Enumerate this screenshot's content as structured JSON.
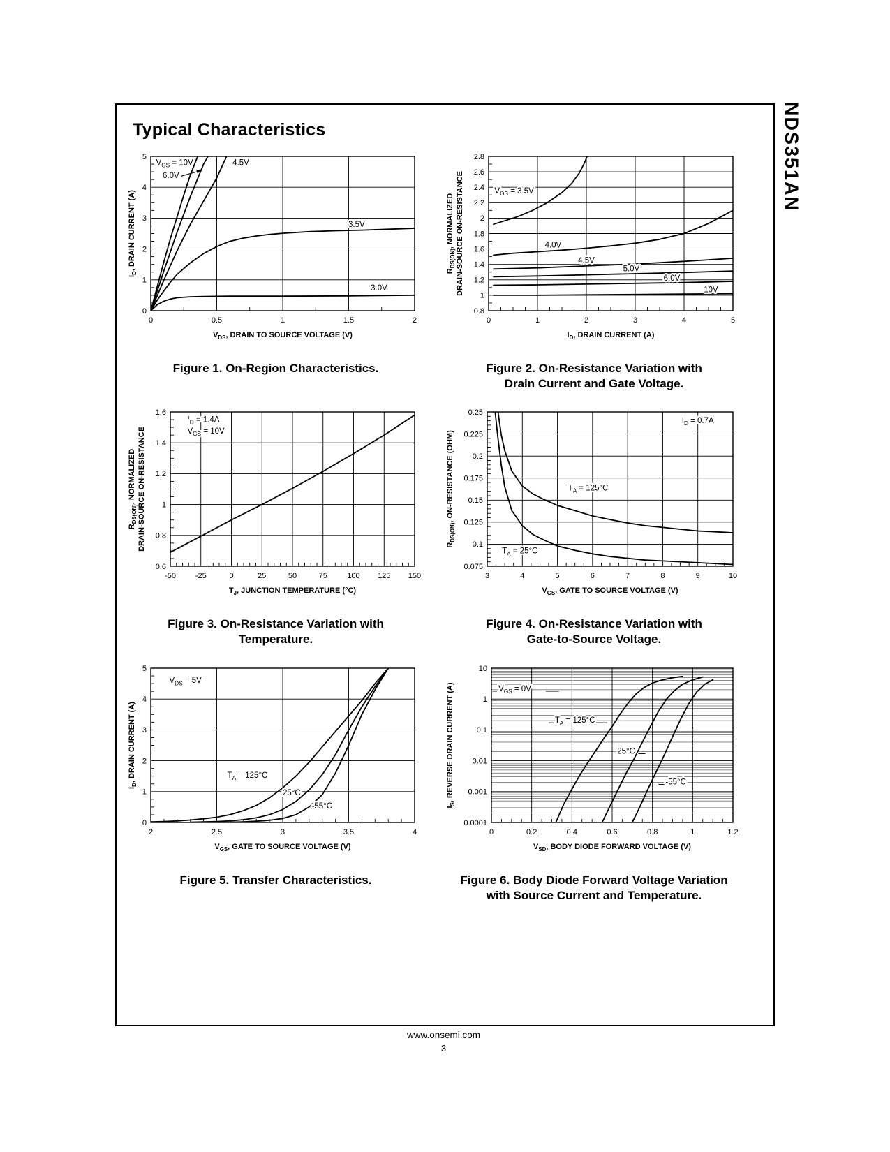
{
  "page": {
    "title": "Typical Characteristics",
    "side_label": "NDS351AN",
    "footer": {
      "url": "www.onsemi.com",
      "page_number": "3"
    }
  },
  "chart_data": [
    {
      "caption": "Figure 1. On-Region Characteristics.",
      "type": "line",
      "xlabel": "V_{DS}, DRAIN TO SOURCE VOLTAGE (V)",
      "ylabel": "I_{D}, DRAIN CURRENT (A)",
      "xlim": [
        0,
        2
      ],
      "ylim": [
        0,
        5
      ],
      "xticks": [
        0,
        0.5,
        1,
        1.5,
        2
      ],
      "xtick_labels": [
        "0",
        "0.5",
        "1",
        "1.5",
        "2"
      ],
      "yticks": [
        0,
        1,
        2,
        3,
        4,
        5
      ],
      "ytick_labels": [
        "0",
        "1",
        "2",
        "3",
        "4",
        "5"
      ],
      "xminor_step": 0.25,
      "yminor_step": 0.25,
      "yscale": "linear",
      "grid": true,
      "legend": "inline-annotations",
      "series": [
        {
          "name": "VGS = 10V",
          "x": [
            0,
            0.05,
            0.1,
            0.15,
            0.2,
            0.25,
            0.3,
            0.36
          ],
          "y": [
            0,
            0.8,
            1.6,
            2.35,
            3.05,
            3.75,
            4.4,
            5.05
          ]
        },
        {
          "name": "VGS = 6.0V",
          "x": [
            0,
            0.05,
            0.1,
            0.2,
            0.3,
            0.4,
            0.44
          ],
          "y": [
            0,
            0.65,
            1.3,
            2.55,
            3.7,
            4.75,
            5.05
          ]
        },
        {
          "name": "VGS = 4.5V",
          "x": [
            0,
            0.05,
            0.1,
            0.2,
            0.3,
            0.4,
            0.5,
            0.58
          ],
          "y": [
            0,
            0.5,
            1.0,
            1.95,
            2.8,
            3.55,
            4.3,
            5.05
          ]
        },
        {
          "name": "VGS = 3.5V",
          "x": [
            0,
            0.05,
            0.1,
            0.15,
            0.2,
            0.3,
            0.4,
            0.5,
            0.6,
            0.7,
            0.8,
            0.9,
            1.0,
            1.2,
            1.4,
            1.6,
            1.8,
            2.0
          ],
          "y": [
            0,
            0.35,
            0.65,
            0.93,
            1.18,
            1.55,
            1.85,
            2.08,
            2.25,
            2.35,
            2.42,
            2.47,
            2.51,
            2.56,
            2.59,
            2.61,
            2.64,
            2.67
          ]
        },
        {
          "name": "VGS = 3.0V",
          "x": [
            0,
            0.05,
            0.1,
            0.15,
            0.2,
            0.3,
            0.4,
            0.6,
            1.0,
            1.5,
            2.0
          ],
          "y": [
            0,
            0.2,
            0.31,
            0.38,
            0.42,
            0.45,
            0.46,
            0.47,
            0.47,
            0.48,
            0.5
          ]
        }
      ],
      "annotations": [
        {
          "text": "V_{GS} = 10V",
          "x": 0.04,
          "y": 4.72,
          "ha": "start"
        },
        {
          "text": "6.0V",
          "x": 0.09,
          "y": 4.3,
          "ha": "start",
          "leader": [
            0.23,
            4.36,
            0.38,
            4.54
          ],
          "arrow": true
        },
        {
          "text": "4.5V",
          "x": 0.62,
          "y": 4.72,
          "ha": "start"
        },
        {
          "text": "3.5V",
          "x": 1.56,
          "y": 2.72,
          "ha": "middle"
        },
        {
          "text": "3.0V",
          "x": 1.73,
          "y": 0.66,
          "ha": "middle"
        }
      ]
    },
    {
      "caption": "Figure 2. On-Resistance Variation with\nDrain Current and Gate Voltage.",
      "type": "line",
      "xlabel": "I_{D}, DRAIN CURRENT (A)",
      "ylabel": "R_{DS(ON)}, NORMALIZED\nDRAIN-SOURCE ON-RESISTANCE",
      "xlim": [
        0,
        5
      ],
      "ylim": [
        0.8,
        2.8
      ],
      "xticks": [
        0,
        1,
        2,
        3,
        4,
        5
      ],
      "xtick_labels": [
        "0",
        "1",
        "2",
        "3",
        "4",
        "5"
      ],
      "yticks": [
        0.8,
        1,
        1.2,
        1.4,
        1.6,
        1.8,
        2,
        2.2,
        2.4,
        2.6,
        2.8
      ],
      "ytick_labels": [
        "0.8",
        "1",
        "1.2",
        "1.4",
        "1.6",
        "1.8",
        "2",
        "2.2",
        "2.4",
        "2.6",
        "2.8"
      ],
      "xminor_step": 0.25,
      "yminor_step": 0.1,
      "yscale": "linear",
      "grid": true,
      "legend": "inline-annotations",
      "series": [
        {
          "name": "VGS = 3.5V",
          "x": [
            0.1,
            0.3,
            0.6,
            0.9,
            1.2,
            1.5,
            1.7,
            1.85,
            1.95,
            2.03
          ],
          "y": [
            1.92,
            1.96,
            2.02,
            2.1,
            2.2,
            2.33,
            2.45,
            2.58,
            2.7,
            2.82
          ]
        },
        {
          "name": "VGS = 4.0V",
          "x": [
            0.1,
            0.5,
            1.0,
            1.5,
            2.0,
            2.5,
            3.0,
            3.5,
            4.0,
            4.5,
            5.0
          ],
          "y": [
            1.52,
            1.545,
            1.565,
            1.585,
            1.61,
            1.64,
            1.675,
            1.725,
            1.8,
            1.93,
            2.1
          ]
        },
        {
          "name": "VGS = 4.5V",
          "x": [
            0.1,
            1,
            2,
            3,
            4,
            5
          ],
          "y": [
            1.34,
            1.355,
            1.38,
            1.405,
            1.44,
            1.48
          ]
        },
        {
          "name": "VGS = 5.0V",
          "x": [
            0.1,
            1,
            2,
            3,
            4,
            5
          ],
          "y": [
            1.24,
            1.25,
            1.265,
            1.28,
            1.295,
            1.315
          ]
        },
        {
          "name": "VGS = 6.0V",
          "x": [
            0.1,
            1,
            2,
            3,
            4,
            5
          ],
          "y": [
            1.13,
            1.135,
            1.145,
            1.155,
            1.165,
            1.18
          ]
        },
        {
          "name": "VGS = 10V",
          "x": [
            0.1,
            1,
            2,
            3,
            4,
            5
          ],
          "y": [
            1.0,
            1.0,
            1.005,
            1.01,
            1.015,
            1.02
          ]
        }
      ],
      "annotations": [
        {
          "text": "V_{GS} = 3.5V",
          "x": 0.12,
          "y": 2.32,
          "ha": "start"
        },
        {
          "text": "4.0V",
          "x": 1.32,
          "y": 1.62,
          "ha": "middle"
        },
        {
          "text": "4.5V",
          "x": 2.0,
          "y": 1.42,
          "ha": "middle"
        },
        {
          "text": "5.0V",
          "x": 2.92,
          "y": 1.31,
          "ha": "middle"
        },
        {
          "text": "6.0V",
          "x": 3.75,
          "y": 1.19,
          "ha": "middle"
        },
        {
          "text": "10V",
          "x": 4.55,
          "y": 1.04,
          "ha": "middle"
        }
      ]
    },
    {
      "caption": "Figure 3. On-Resistance Variation with\nTemperature.",
      "type": "line",
      "xlabel": "T_{J}, JUNCTION TEMPERATURE (°C)",
      "ylabel": "R_{DS(ON)}, NORMALIZED\nDRAIN-SOURCE ON-RESISTANCE",
      "xlim": [
        -50,
        150
      ],
      "ylim": [
        0.6,
        1.6
      ],
      "xticks": [
        -50,
        -25,
        0,
        25,
        50,
        75,
        100,
        125,
        150
      ],
      "xtick_labels": [
        "-50",
        "-25",
        "0",
        "25",
        "50",
        "75",
        "100",
        "125",
        "150"
      ],
      "yticks": [
        0.6,
        0.8,
        1,
        1.2,
        1.4,
        1.6
      ],
      "ytick_labels": [
        "0.6",
        "0.8",
        "1",
        "1.2",
        "1.4",
        "1.6"
      ],
      "xminor_step": 5,
      "yminor_step": 0.05,
      "yscale": "linear",
      "grid": true,
      "legend": "none",
      "series": [
        {
          "name": "normalized RDS(ON)",
          "x": [
            -50,
            -25,
            0,
            25,
            50,
            75,
            100,
            125,
            150
          ],
          "y": [
            0.69,
            0.795,
            0.9,
            1.0,
            1.105,
            1.215,
            1.33,
            1.45,
            1.58
          ]
        }
      ],
      "annotations": [
        {
          "text": "I_{D} = 1.4A",
          "x": -36,
          "y": 1.535,
          "ha": "start"
        },
        {
          "text": "V_{GS} = 10V",
          "x": -36,
          "y": 1.46,
          "ha": "start"
        }
      ]
    },
    {
      "caption": "Figure 4. On-Resistance Variation with\nGate-to-Source Voltage.",
      "type": "line",
      "xlabel": "V_{GS}, GATE TO SOURCE VOLTAGE (V)",
      "ylabel": "R_{DS(ON)},  ON-RESISTANCE (OHM)",
      "xlim": [
        3,
        10
      ],
      "ylim": [
        0.075,
        0.25
      ],
      "xticks": [
        3,
        4,
        5,
        6,
        7,
        8,
        9,
        10
      ],
      "xtick_labels": [
        "3",
        "4",
        "5",
        "6",
        "7",
        "8",
        "9",
        "10"
      ],
      "yticks": [
        0.075,
        0.1,
        0.125,
        0.15,
        0.175,
        0.2,
        0.225,
        0.25
      ],
      "ytick_labels": [
        "0.075",
        "0.1",
        "0.125",
        "0.15",
        "0.175",
        "0.2",
        "0.225",
        "0.25"
      ],
      "xminor_step": 0.25,
      "yminor_step": 0.005,
      "yscale": "linear",
      "grid": true,
      "legend": "inline-annotations",
      "series": [
        {
          "name": "TA = 125°C",
          "x": [
            3.3,
            3.4,
            3.5,
            3.7,
            4.0,
            4.3,
            4.6,
            5.0,
            5.5,
            6.0,
            6.5,
            7.0,
            7.5,
            8.0,
            8.5,
            9.0,
            9.5,
            10.0
          ],
          "y": [
            0.252,
            0.224,
            0.206,
            0.183,
            0.166,
            0.157,
            0.151,
            0.144,
            0.138,
            0.132,
            0.128,
            0.124,
            0.121,
            0.119,
            0.117,
            0.115,
            0.114,
            0.113
          ]
        },
        {
          "name": "TA = 25°C",
          "x": [
            3.22,
            3.3,
            3.4,
            3.5,
            3.7,
            4.0,
            4.3,
            4.6,
            5.0,
            5.5,
            6.0,
            6.5,
            7.0,
            7.5,
            8.0,
            9.0,
            10.0
          ],
          "y": [
            0.252,
            0.222,
            0.19,
            0.165,
            0.138,
            0.121,
            0.111,
            0.105,
            0.098,
            0.093,
            0.089,
            0.086,
            0.084,
            0.082,
            0.081,
            0.079,
            0.077
          ]
        }
      ],
      "annotations": [
        {
          "text": "I_{D} = 0.7A",
          "x": 9.0,
          "y": 0.2375,
          "ha": "middle"
        },
        {
          "text": "T_{A} = 125°C",
          "x": 5.3,
          "y": 0.161,
          "ha": "start"
        },
        {
          "text": "T_{A} = 25°C",
          "x": 3.42,
          "y": 0.0895,
          "ha": "start"
        }
      ]
    },
    {
      "caption": "Figure 5. Transfer Characteristics.",
      "type": "line",
      "xlabel": "V_{GS}, GATE TO SOURCE VOLTAGE (V)",
      "ylabel": "I_{D}, DRAIN CURRENT (A)",
      "xlim": [
        2,
        4
      ],
      "ylim": [
        0,
        5
      ],
      "xticks": [
        2,
        2.5,
        3,
        3.5,
        4
      ],
      "xtick_labels": [
        "2",
        "2.5",
        "3",
        "3.5",
        "4"
      ],
      "yticks": [
        0,
        1,
        2,
        3,
        4,
        5
      ],
      "ytick_labels": [
        "0",
        "1",
        "2",
        "3",
        "4",
        "5"
      ],
      "xminor_step": 0.1,
      "yminor_step": 0.25,
      "yscale": "linear",
      "grid": true,
      "legend": "inline-annotations",
      "series": [
        {
          "name": "TA = 125°C",
          "x": [
            2.0,
            2.1,
            2.2,
            2.3,
            2.4,
            2.5,
            2.6,
            2.7,
            2.8,
            2.9,
            3.0,
            3.1,
            3.2,
            3.3,
            3.4,
            3.5,
            3.6,
            3.7,
            3.8
          ],
          "y": [
            0.02,
            0.03,
            0.05,
            0.08,
            0.12,
            0.17,
            0.25,
            0.38,
            0.55,
            0.8,
            1.12,
            1.5,
            1.95,
            2.45,
            2.95,
            3.45,
            3.95,
            4.5,
            5.0
          ]
        },
        {
          "name": "TA = 25°C",
          "x": [
            2.3,
            2.4,
            2.5,
            2.6,
            2.7,
            2.8,
            2.9,
            3.0,
            3.1,
            3.2,
            3.3,
            3.4,
            3.5,
            3.6,
            3.7,
            3.8
          ],
          "y": [
            0.01,
            0.02,
            0.03,
            0.05,
            0.09,
            0.15,
            0.25,
            0.42,
            0.68,
            1.05,
            1.55,
            2.2,
            3.0,
            3.75,
            4.4,
            5.0
          ]
        },
        {
          "name": "TA = -55°C",
          "x": [
            2.6,
            2.7,
            2.8,
            2.9,
            3.0,
            3.1,
            3.2,
            3.3,
            3.4,
            3.5,
            3.6,
            3.7,
            3.8
          ],
          "y": [
            0.01,
            0.02,
            0.04,
            0.07,
            0.13,
            0.25,
            0.5,
            0.9,
            1.6,
            2.5,
            3.5,
            4.3,
            5.0
          ]
        }
      ],
      "annotations": [
        {
          "text": "V_{DS} = 5V",
          "x": 2.14,
          "y": 4.52,
          "ha": "start"
        },
        {
          "text": "T_{A} = 125°C",
          "x": 2.58,
          "y": 1.45,
          "ha": "start"
        },
        {
          "text": "25°C",
          "x": 3.0,
          "y": 0.88,
          "ha": "start"
        },
        {
          "text": "-55°C",
          "x": 3.22,
          "y": 0.45,
          "ha": "start"
        }
      ]
    },
    {
      "caption": "Figure 6. Body Diode Forward Voltage Variation\nwith Source Current and Temperature.",
      "type": "line",
      "xlabel": "V_{SD},  BODY DIODE FORWARD VOLTAGE (V)",
      "ylabel": "I_{S}, REVERSE DRAIN CURRENT (A)",
      "xlim": [
        0,
        1.2
      ],
      "ylim": [
        0.0001,
        10
      ],
      "xticks": [
        0,
        0.2,
        0.4,
        0.6,
        0.8,
        1,
        1.2
      ],
      "xtick_labels": [
        "0",
        "0.2",
        "0.4",
        "0.6",
        "0.8",
        "1",
        "1.2"
      ],
      "yticks": [
        10,
        1,
        0.1,
        0.01,
        0.001,
        0.0001
      ],
      "ytick_labels": [
        "10",
        "1",
        "0.1",
        "0.01",
        "0.001",
        "0.0001"
      ],
      "xminor_step": 0.05,
      "yscale": "log",
      "grid": true,
      "legend": "inline-annotations",
      "series": [
        {
          "name": "TA = 125°C",
          "x": [
            0.32,
            0.36,
            0.4,
            0.44,
            0.48,
            0.52,
            0.56,
            0.6,
            0.64,
            0.68,
            0.72,
            0.76,
            0.8,
            0.85,
            0.9,
            0.95
          ],
          "y": [
            0.0001,
            0.0004,
            0.0012,
            0.0035,
            0.009,
            0.022,
            0.055,
            0.13,
            0.33,
            0.75,
            1.5,
            2.4,
            3.3,
            4.2,
            4.9,
            5.4
          ]
        },
        {
          "name": "TA = 25°C",
          "x": [
            0.55,
            0.59,
            0.63,
            0.67,
            0.71,
            0.75,
            0.79,
            0.83,
            0.87,
            0.91,
            0.95,
            1.0,
            1.05
          ],
          "y": [
            0.0001,
            0.00035,
            0.0012,
            0.004,
            0.012,
            0.04,
            0.13,
            0.4,
            1.0,
            1.9,
            3.0,
            4.2,
            5.2
          ]
        },
        {
          "name": "TA = -55°C",
          "x": [
            0.7,
            0.74,
            0.78,
            0.82,
            0.86,
            0.9,
            0.94,
            0.98,
            1.02,
            1.06,
            1.1
          ],
          "y": [
            0.0001,
            0.00035,
            0.0013,
            0.0045,
            0.016,
            0.06,
            0.22,
            0.7,
            1.7,
            3.0,
            4.2
          ]
        }
      ],
      "annotations": [
        {
          "text": "V_{GS} = 0V",
          "x": 0.035,
          "y": 1.8,
          "ha": "start",
          "leader": [
            0.27,
            1.8,
            0.335,
            1.8
          ],
          "leader2": [
            0.005,
            1.8,
            0.028,
            1.8
          ]
        },
        {
          "text": "T_{A} = 125°C",
          "x": 0.315,
          "y": 0.17,
          "ha": "start",
          "leader": [
            0.52,
            0.17,
            0.575,
            0.17
          ],
          "leader2": [
            0.285,
            0.17,
            0.308,
            0.17
          ]
        },
        {
          "text": "25°C",
          "x": 0.625,
          "y": 0.017,
          "ha": "start",
          "leader": [
            0.73,
            0.017,
            0.765,
            0.017
          ]
        },
        {
          "text": "-55°C",
          "x": 0.865,
          "y": 0.0017,
          "ha": "start",
          "leader": [
            0.83,
            0.0017,
            0.858,
            0.0017
          ]
        }
      ]
    }
  ]
}
